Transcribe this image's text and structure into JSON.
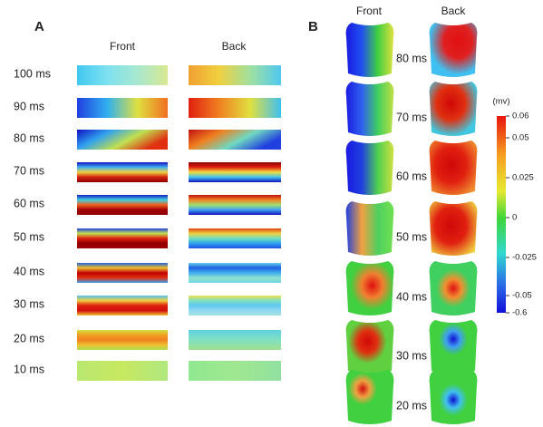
{
  "panel_a": {
    "label": "A",
    "columns": [
      "Front",
      "Back"
    ],
    "rows": [
      "100 ms",
      "90 ms",
      "80 ms",
      "70 ms",
      "60 ms",
      "50 ms",
      "40 ms",
      "30 ms",
      "20 ms",
      "10 ms"
    ]
  },
  "panel_b": {
    "label": "B",
    "columns": [
      "Front",
      "Back"
    ],
    "rows": [
      "80 ms",
      "70 ms",
      "60 ms",
      "50 ms",
      "40 ms",
      "30 ms",
      "20 ms"
    ]
  },
  "colorbar": {
    "unit": "(mv)",
    "ticks": [
      "0.06",
      "0.05",
      "0.025",
      "0",
      "-0.025",
      "-0.05",
      "-0.6"
    ]
  }
}
